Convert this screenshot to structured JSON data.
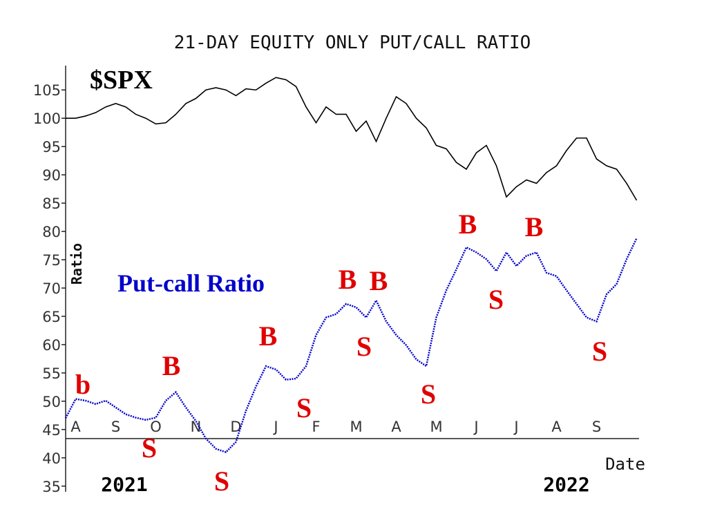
{
  "chart_data": {
    "type": "line",
    "title": "21-DAY EQUITY ONLY PUT/CALL RATIO",
    "y_label": "Ratio",
    "x_label": "Date",
    "years": [
      "2021",
      "2022"
    ],
    "categories": [
      null,
      "A",
      null,
      null,
      null,
      "S",
      null,
      null,
      null,
      "O",
      null,
      null,
      null,
      "N",
      null,
      null,
      null,
      "D",
      null,
      null,
      null,
      "J",
      null,
      null,
      null,
      "F",
      null,
      null,
      null,
      "M",
      null,
      null,
      null,
      "A",
      null,
      null,
      null,
      "M",
      null,
      null,
      null,
      "J",
      null,
      null,
      null,
      "J",
      null,
      null,
      null,
      "A",
      null,
      null,
      null,
      "S",
      null,
      null,
      null,
      null
    ],
    "series": [
      {
        "name": "$SPX",
        "color": "#000000",
        "values": [
          100,
          100,
          100.4,
          101,
          102,
          102.6,
          102,
          100.7,
          100,
          99,
          99.2,
          100.7,
          102.6,
          103.5,
          105,
          105.4,
          105,
          104,
          105.2,
          105,
          106.2,
          107.2,
          106.8,
          105.6,
          102,
          99.2,
          102,
          100.7,
          100.7,
          97.7,
          99.5,
          95.9,
          100,
          103.8,
          102.6,
          100,
          98.3,
          95.2,
          94.6,
          92.2,
          91,
          93.9,
          95.2,
          91.6,
          86.1,
          87.9,
          89.1,
          88.5,
          90.4,
          91.6,
          94.3,
          96.5,
          96.5,
          92.8,
          91.6,
          91,
          88.5,
          85.5
        ]
      },
      {
        "name": "Put-call Ratio",
        "color": "#0000cc",
        "values": [
          47,
          50.4,
          50.1,
          49.5,
          50.1,
          48.9,
          47.7,
          47.1,
          46.7,
          47.1,
          50.1,
          51.6,
          48.9,
          46.5,
          43.4,
          41.6,
          41,
          42.8,
          48.3,
          52.6,
          56.2,
          55.6,
          53.8,
          54,
          56.2,
          61.7,
          64.8,
          65.4,
          67.2,
          66.6,
          64.8,
          67.8,
          64.1,
          61.7,
          59.9,
          57.4,
          56.2,
          64.8,
          69.6,
          73.3,
          77.2,
          76.3,
          75.1,
          73,
          76.3,
          73.9,
          75.7,
          76.3,
          72.7,
          72.1,
          69.6,
          67.2,
          64.8,
          64.1,
          68.9,
          70.7,
          75.1,
          78.8
        ]
      }
    ],
    "ylim": [
      34,
      109.3
    ],
    "yticks": [
      35,
      40,
      45,
      50,
      55,
      60,
      65,
      70,
      75,
      80,
      85,
      90,
      95,
      100,
      105
    ],
    "annotations": [
      "b",
      "B",
      "S",
      "S",
      "B",
      "S",
      "B",
      "B",
      "S",
      "S",
      "B",
      "S",
      "B",
      "S"
    ]
  }
}
